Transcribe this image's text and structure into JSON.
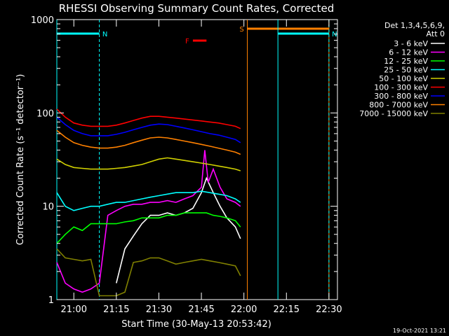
{
  "chart_data": {
    "type": "line",
    "title": "RHESSI Observing Summary Count Rates, Corrected",
    "xlabel": "Start Time (30-May-13 20:53:42)",
    "ylabel": "Corrected Count Rate (s⁻¹ detector⁻¹)",
    "yscale": "log",
    "ylim": [
      1,
      1000
    ],
    "xlim_minutes": [
      20.9,
      22.55
    ],
    "x_ticks": [
      "21:00",
      "21:15",
      "21:30",
      "21:45",
      "22:00",
      "22:15",
      "22:30"
    ],
    "y_ticks": [
      "1",
      "10",
      "100",
      "1000"
    ],
    "legend_position": "top-right",
    "legend_header": [
      "Det 1,3,4,5,6,9,",
      "Att 0"
    ],
    "timestamp": "19-Oct-2021 13:21",
    "flags": [
      {
        "label": "N",
        "color": "#00ffff",
        "start": 20.9,
        "end": 21.15
      },
      {
        "label": "F",
        "color": "#ff0000",
        "start": 21.7,
        "end": 21.78
      },
      {
        "label": "S",
        "color": "#ff8000",
        "start": 22.02,
        "end": 22.5
      },
      {
        "label": "N",
        "color": "#00ffff",
        "start": 22.2,
        "end": 22.5
      }
    ],
    "series": [
      {
        "name": "3 - 6 keV",
        "color": "#ffffff",
        "x": [
          21.25,
          21.3,
          21.35,
          21.4,
          21.45,
          21.5,
          21.55,
          21.6,
          21.65,
          21.7,
          21.75,
          21.78,
          21.82,
          21.86,
          21.9,
          21.95,
          21.98
        ],
        "y": [
          1.5,
          3.5,
          4.8,
          6.5,
          8,
          8,
          8.5,
          8,
          8.5,
          9.5,
          14,
          20,
          14,
          10,
          7.5,
          6,
          4.5
        ]
      },
      {
        "name": "6 - 12 keV",
        "color": "#ff00ff",
        "x": [
          20.9,
          20.95,
          21.0,
          21.05,
          21.1,
          21.15,
          21.2,
          21.25,
          21.3,
          21.35,
          21.4,
          21.45,
          21.5,
          21.55,
          21.6,
          21.65,
          21.7,
          21.75,
          21.77,
          21.79,
          21.82,
          21.86,
          21.9,
          21.95,
          21.98
        ],
        "y": [
          2.5,
          1.5,
          1.3,
          1.2,
          1.3,
          1.5,
          8,
          9,
          10,
          10.5,
          10.5,
          11,
          11,
          11.5,
          11,
          12,
          13,
          16,
          40,
          18,
          25,
          16,
          12,
          11,
          10
        ]
      },
      {
        "name": "12 - 25 keV",
        "color": "#00ff00",
        "x": [
          20.9,
          20.95,
          21.0,
          21.05,
          21.1,
          21.15,
          21.2,
          21.25,
          21.3,
          21.35,
          21.4,
          21.45,
          21.5,
          21.55,
          21.6,
          21.65,
          21.7,
          21.75,
          21.78,
          21.82,
          21.86,
          21.9,
          21.95,
          21.98
        ],
        "y": [
          4,
          5,
          6,
          5.5,
          6.5,
          6.5,
          6.5,
          6.5,
          6.8,
          7,
          7.5,
          7.5,
          7.5,
          8,
          8,
          8.5,
          8.5,
          8.5,
          8.5,
          8,
          7.8,
          7.5,
          7,
          6
        ]
      },
      {
        "name": "25 - 50 keV",
        "color": "#00ffff",
        "x": [
          20.9,
          20.95,
          21.0,
          21.05,
          21.1,
          21.15,
          21.2,
          21.25,
          21.3,
          21.35,
          21.4,
          21.45,
          21.5,
          21.55,
          21.6,
          21.65,
          21.7,
          21.75,
          21.8,
          21.85,
          21.9,
          21.95,
          21.98
        ],
        "y": [
          14,
          10,
          9,
          9.5,
          10,
          10,
          10.5,
          11,
          11,
          11.5,
          12,
          12.5,
          13,
          13.5,
          14,
          14,
          14,
          14.5,
          14,
          13.5,
          13,
          12,
          11
        ]
      },
      {
        "name": "50 - 100 keV",
        "color": "#d0d000",
        "x": [
          20.9,
          20.95,
          21.0,
          21.05,
          21.1,
          21.15,
          21.2,
          21.25,
          21.3,
          21.35,
          21.4,
          21.45,
          21.5,
          21.55,
          21.6,
          21.65,
          21.7,
          21.75,
          21.8,
          21.85,
          21.9,
          21.95,
          21.98
        ],
        "y": [
          32,
          28,
          26,
          25.5,
          25,
          25,
          25,
          25.5,
          26,
          27,
          28,
          30,
          32,
          33,
          32,
          31,
          30,
          29,
          28,
          27,
          26,
          25,
          24
        ]
      },
      {
        "name": "100 - 300 keV",
        "color": "#ff0000",
        "x": [
          20.9,
          20.95,
          21.0,
          21.05,
          21.1,
          21.15,
          21.2,
          21.25,
          21.3,
          21.35,
          21.4,
          21.45,
          21.5,
          21.55,
          21.6,
          21.65,
          21.7,
          21.75,
          21.8,
          21.85,
          21.9,
          21.95,
          21.98
        ],
        "y": [
          110,
          90,
          78,
          74,
          72,
          72,
          72,
          74,
          78,
          83,
          88,
          92,
          92,
          90,
          88,
          86,
          84,
          82,
          80,
          78,
          75,
          72,
          68
        ]
      },
      {
        "name": "300 - 800 keV",
        "color": "#0000ff",
        "x": [
          20.9,
          20.95,
          21.0,
          21.05,
          21.1,
          21.15,
          21.2,
          21.25,
          21.3,
          21.35,
          21.4,
          21.45,
          21.5,
          21.55,
          21.6,
          21.65,
          21.7,
          21.75,
          21.8,
          21.85,
          21.9,
          21.95,
          21.98
        ],
        "y": [
          90,
          75,
          65,
          60,
          57,
          57,
          57,
          59,
          62,
          66,
          70,
          74,
          76,
          75,
          72,
          69,
          66,
          63,
          60,
          58,
          55,
          52,
          48
        ]
      },
      {
        "name": "800 - 7000 keV",
        "color": "#ff8000",
        "x": [
          20.9,
          20.95,
          21.0,
          21.05,
          21.1,
          21.15,
          21.2,
          21.25,
          21.3,
          21.35,
          21.4,
          21.45,
          21.5,
          21.55,
          21.6,
          21.65,
          21.7,
          21.75,
          21.8,
          21.85,
          21.9,
          21.95,
          21.98
        ],
        "y": [
          65,
          55,
          48,
          45,
          43,
          42,
          42,
          43,
          45,
          48,
          51,
          54,
          55,
          54,
          52,
          50,
          48,
          46,
          44,
          42,
          40,
          38,
          36
        ]
      },
      {
        "name": "7000 - 15000 keV",
        "color": "#808000",
        "x": [
          20.9,
          20.95,
          21.0,
          21.05,
          21.1,
          21.15,
          21.2,
          21.25,
          21.3,
          21.35,
          21.4,
          21.45,
          21.5,
          21.55,
          21.6,
          21.65,
          21.7,
          21.75,
          21.8,
          21.85,
          21.9,
          21.95,
          21.98
        ],
        "y": [
          3.5,
          2.8,
          2.7,
          2.6,
          2.7,
          1.1,
          1.1,
          1.1,
          1.2,
          2.5,
          2.6,
          2.8,
          2.8,
          2.6,
          2.4,
          2.5,
          2.6,
          2.7,
          2.6,
          2.5,
          2.4,
          2.3,
          1.8
        ]
      }
    ]
  }
}
